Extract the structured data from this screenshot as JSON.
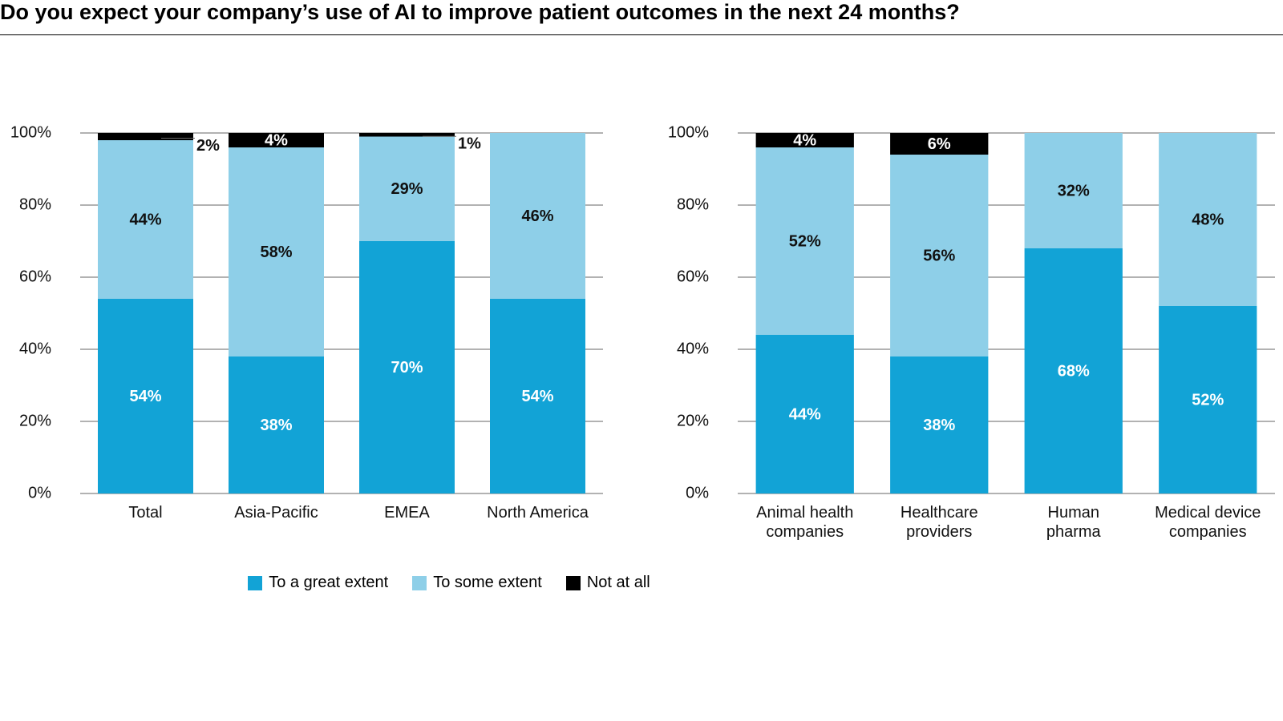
{
  "title": "Do you expect your company’s use of AI to improve patient outcomes in the next 24 months?",
  "chart_data": [
    {
      "type": "stacked_bar",
      "categories": [
        "Total",
        "Asia-Pacific",
        "EMEA",
        "North America"
      ],
      "series": [
        {
          "name": "To a great extent",
          "color": "#12a3d6",
          "values": [
            54,
            38,
            70,
            54
          ],
          "value_labels": [
            "54%",
            "38%",
            "70%",
            "54%"
          ]
        },
        {
          "name": "To some extent",
          "color": "#8ecfe8",
          "values": [
            44,
            58,
            29,
            46
          ],
          "value_labels": [
            "44%",
            "58%",
            "29%",
            "46%"
          ]
        },
        {
          "name": "Not at all",
          "color": "#000000",
          "values": [
            2,
            4,
            1,
            0
          ],
          "value_labels": [
            "2%",
            "4%",
            "1%",
            null
          ]
        }
      ],
      "ylim": [
        0,
        100
      ],
      "yticks": [
        {
          "value": 0,
          "label": "0%"
        },
        {
          "value": 20,
          "label": "20%"
        },
        {
          "value": 40,
          "label": "40%"
        },
        {
          "value": 60,
          "label": "60%"
        },
        {
          "value": 80,
          "label": "80%"
        },
        {
          "value": 100,
          "label": "100%"
        }
      ],
      "grid": true
    },
    {
      "type": "stacked_bar",
      "categories": [
        "Animal health\ncompanies",
        "Healthcare\nproviders",
        "Human\npharma",
        "Medical device\ncompanies"
      ],
      "series": [
        {
          "color": "#12a3d6",
          "values": [
            44,
            38,
            68,
            52
          ],
          "value_labels": [
            "44%",
            "38%",
            "68%",
            "52%"
          ]
        },
        {
          "color": "#8ecfe8",
          "values": [
            52,
            56,
            32,
            48
          ],
          "value_labels": [
            "52%",
            "56%",
            "32%",
            "48%"
          ]
        },
        {
          "color": "#000000",
          "values": [
            4,
            6,
            0,
            0
          ],
          "value_labels": [
            "4%",
            "6%",
            null,
            null
          ]
        }
      ],
      "ylim": [
        0,
        100
      ],
      "yticks": [
        {
          "value": 0,
          "label": "0%"
        },
        {
          "value": 20,
          "label": "20%"
        },
        {
          "value": 40,
          "label": "40%"
        },
        {
          "value": 60,
          "label": "60%"
        },
        {
          "value": 80,
          "label": "80%"
        },
        {
          "value": 100,
          "label": "100%"
        }
      ],
      "grid": true
    }
  ]
}
